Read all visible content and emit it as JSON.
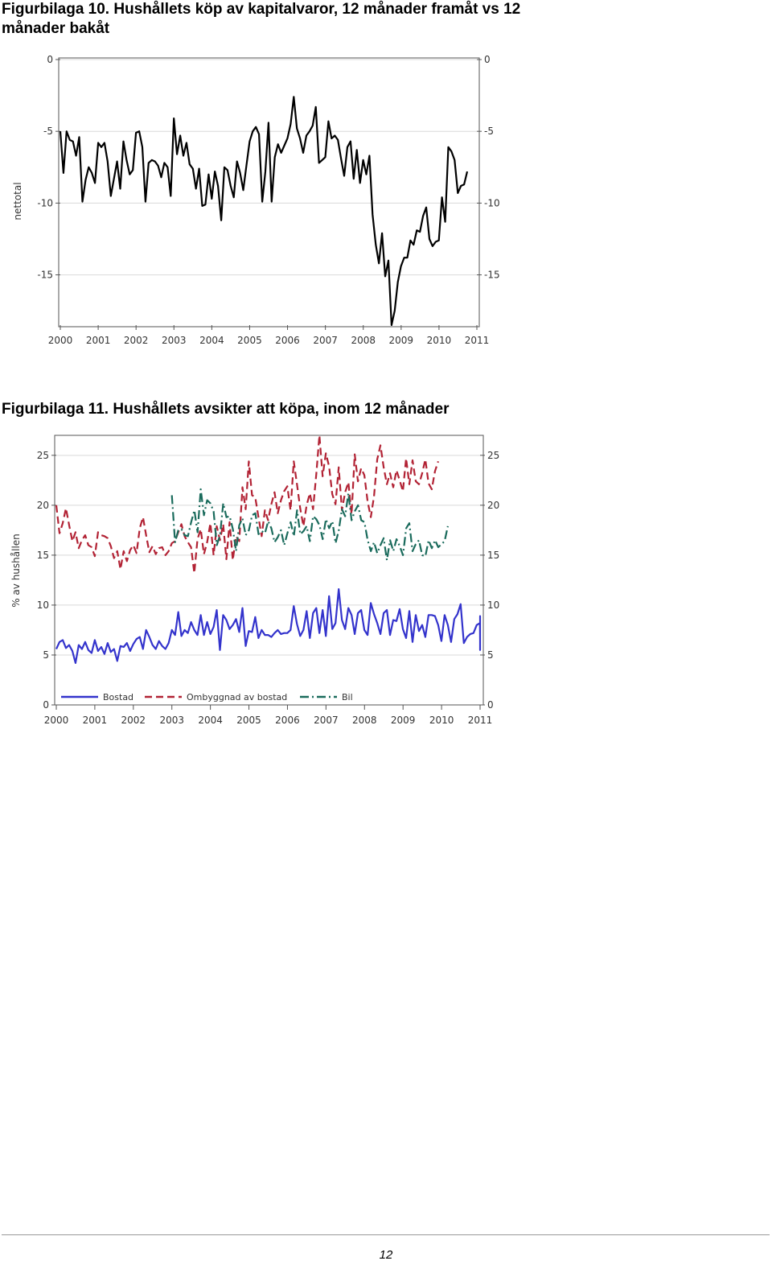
{
  "figures": [
    {
      "title": "Figurbilaga 10. Hushållets köp av kapitalvaror, 12 månader framåt vs 12 månader bakåt"
    },
    {
      "title": "Figurbilaga 11. Hushållets avsikter att köpa, inom 12 månader"
    }
  ],
  "page_number": "12",
  "chart_data": [
    {
      "type": "line",
      "title": "",
      "ylabel": "nettotal",
      "xlabel": "",
      "xlim": [
        2000,
        2011
      ],
      "ylim": [
        -18.5,
        0
      ],
      "x_ticks": [
        "2000",
        "2001",
        "2002",
        "2003",
        "2004",
        "2005",
        "2006",
        "2007",
        "2008",
        "2009",
        "2010",
        "2011"
      ],
      "y_ticks": [
        "0",
        "-5",
        "-10",
        "-15"
      ],
      "y_tick_values": [
        0,
        -5,
        -10,
        -15
      ],
      "grid": true,
      "legend": "none",
      "series": [
        {
          "color": "#000000",
          "x_start": 2000.0,
          "x_step": 0.0833,
          "values": [
            -5.0,
            -7.9,
            -5.0,
            -5.6,
            -5.7,
            -6.7,
            -5.4,
            -9.9,
            -8.4,
            -7.5,
            -7.9,
            -8.6,
            -5.8,
            -6.1,
            -5.8,
            -7.1,
            -9.5,
            -8.3,
            -7.1,
            -9.0,
            -5.7,
            -7.0,
            -8.0,
            -7.7,
            -5.1,
            -5.0,
            -6.1,
            -9.9,
            -7.2,
            -7.0,
            -7.1,
            -7.4,
            -8.2,
            -7.2,
            -7.5,
            -9.5,
            -4.1,
            -6.6,
            -5.3,
            -6.7,
            -5.8,
            -7.3,
            -7.6,
            -9.0,
            -7.6,
            -10.2,
            -10.1,
            -8.0,
            -9.7,
            -7.8,
            -8.8,
            -11.2,
            -7.5,
            -7.7,
            -8.8,
            -9.6,
            -7.1,
            -7.9,
            -9.1,
            -7.4,
            -5.7,
            -5.0,
            -4.7,
            -5.2,
            -9.9,
            -7.8,
            -4.4,
            -9.9,
            -6.8,
            -5.9,
            -6.5,
            -6.0,
            -5.5,
            -4.5,
            -2.6,
            -4.8,
            -5.5,
            -6.5,
            -5.3,
            -5.0,
            -4.6,
            -3.3,
            -7.2,
            -7.0,
            -6.8,
            -4.3,
            -5.5,
            -5.3,
            -5.6,
            -6.9,
            -8.1,
            -6.1,
            -5.7,
            -8.3,
            -6.3,
            -8.6,
            -7.0,
            -8.0,
            -6.7,
            -10.8,
            -12.9,
            -14.2,
            -12.1,
            -15.1,
            -14.0,
            -18.5,
            -17.5,
            -15.5,
            -14.4,
            -13.8,
            -13.8,
            -12.6,
            -12.9,
            -11.9,
            -12.0,
            -10.9,
            -10.3,
            -12.5,
            -13.0,
            -12.7,
            -12.6,
            -9.6,
            -11.3,
            -6.1,
            -6.4,
            -7.0,
            -9.3,
            -8.8,
            -8.7,
            -7.8
          ]
        }
      ]
    },
    {
      "type": "line",
      "title": "",
      "ylabel": "% av hushållen",
      "xlabel": "",
      "xlim": [
        2000,
        2011
      ],
      "ylim": [
        0,
        27
      ],
      "x_ticks": [
        "2000",
        "2001",
        "2002",
        "2003",
        "2004",
        "2005",
        "2006",
        "2007",
        "2008",
        "2009",
        "2010",
        "2011"
      ],
      "y_ticks": [
        "25",
        "20",
        "15",
        "10",
        "5",
        "0"
      ],
      "y_tick_values": [
        25,
        20,
        15,
        10,
        5,
        0
      ],
      "grid": true,
      "legend": "bottom-left inside",
      "series": [
        {
          "name": "Bostad",
          "color": "#3333cc",
          "dash": "solid",
          "x_start": 2000.0,
          "x_step": 0.0833,
          "values": [
            5.6,
            6.3,
            6.5,
            5.7,
            6.0,
            5.4,
            4.2,
            6.0,
            5.6,
            6.3,
            5.5,
            5.2,
            6.5,
            5.4,
            5.8,
            5.1,
            6.2,
            5.3,
            5.6,
            4.4,
            5.9,
            5.8,
            6.2,
            5.4,
            6.1,
            6.6,
            6.8,
            5.6,
            7.5,
            6.8,
            6.0,
            5.6,
            6.4,
            5.9,
            5.6,
            6.2,
            7.5,
            7.0,
            9.3,
            6.9,
            7.5,
            7.2,
            8.3,
            7.5,
            7.0,
            9.0,
            7.0,
            8.3,
            7.1,
            7.8,
            9.5,
            5.5,
            9.0,
            8.5,
            7.6,
            8.0,
            8.6,
            7.3,
            9.7,
            5.9,
            7.4,
            7.3,
            8.8,
            6.7,
            7.5,
            7.0,
            7.0,
            6.8,
            7.2,
            7.5,
            7.1,
            7.2,
            7.2,
            7.5,
            9.9,
            8.1,
            6.9,
            7.5,
            9.4,
            6.7,
            9.2,
            9.7,
            7.2,
            9.5,
            6.9,
            10.9,
            7.6,
            8.2,
            11.6,
            8.5,
            7.6,
            9.7,
            9.0,
            7.1,
            9.2,
            9.5,
            7.5,
            7.0,
            10.2,
            9.1,
            8.2,
            7.1,
            9.2,
            9.5,
            7.0,
            8.5,
            8.4,
            9.6,
            7.6,
            6.7,
            9.4,
            6.3,
            9.0,
            7.4,
            8.0,
            6.8,
            9.0,
            9.0,
            8.9,
            8.0,
            6.4,
            9.0,
            8.0,
            6.3,
            8.6,
            9.1,
            10.1,
            6.2,
            6.8,
            7.1,
            7.2,
            8.0,
            8.2,
            6.4,
            8.8,
            7.3,
            8.4,
            8.0,
            6.6,
            8.9,
            7.1,
            8.5,
            8.2,
            6.8,
            8.1,
            8.5,
            5.5,
            8.0
          ]
        },
        {
          "name": "Ombyggnad av bostad",
          "color": "#b22234",
          "dash": "dashed",
          "x_start": 2000.0,
          "x_step": 0.0833,
          "values": [
            20.0,
            17.2,
            18.2,
            19.7,
            18.0,
            16.4,
            17.3,
            15.7,
            16.5,
            17.0,
            16.0,
            15.8,
            14.9,
            17.3,
            17.0,
            16.9,
            16.7,
            15.9,
            14.7,
            15.4,
            13.6,
            15.4,
            14.4,
            15.5,
            16.0,
            15.2,
            17.7,
            18.8,
            17.0,
            15.3,
            15.9,
            15.1,
            15.7,
            15.8,
            15.0,
            15.4,
            16.2,
            16.4,
            17.3,
            18.1,
            16.9,
            16.3,
            15.8,
            13.2,
            16.6,
            17.6,
            15.1,
            16.3,
            18.2,
            15.0,
            17.9,
            16.5,
            18.1,
            14.6,
            18.3,
            14.5,
            16.9,
            16.4,
            21.8,
            19.6,
            24.4,
            21.0,
            20.8,
            18.8,
            16.9,
            19.5,
            18.5,
            20.1,
            21.3,
            19.2,
            20.5,
            21.4,
            21.9,
            19.5,
            24.4,
            22.1,
            19.7,
            17.9,
            20.0,
            21.2,
            19.6,
            23.1,
            27.0,
            22.9,
            25.2,
            23.9,
            21.1,
            20.1,
            23.8,
            19.5,
            21.3,
            22.3,
            19.1,
            25.1,
            22.4,
            23.7,
            23.0,
            20.4,
            18.8,
            20.9,
            24.6,
            26.0,
            23.8,
            22.1,
            23.2,
            21.8,
            23.5,
            22.5,
            21.4,
            24.7,
            22.1,
            24.5,
            22.4,
            22.1,
            23.2,
            24.6,
            22.2,
            21.6,
            23.4,
            24.4
          ]
        },
        {
          "name": "Bil",
          "color": "#1a6b5c",
          "dash": "dashdot",
          "x_start": 2003.0,
          "x_step": 0.0833,
          "values": [
            21.0,
            16.3,
            17.5,
            17.6,
            17.0,
            16.9,
            18.3,
            19.5,
            17.3,
            21.6,
            19.0,
            20.5,
            20.2,
            19.4,
            16.0,
            17.0,
            20.2,
            18.8,
            18.9,
            17.6,
            15.4,
            18.0,
            18.7,
            17.0,
            17.5,
            19.0,
            19.2,
            17.1,
            17.4,
            17.2,
            18.4,
            17.7,
            16.3,
            16.8,
            17.5,
            16.0,
            17.2,
            18.3,
            16.9,
            19.5,
            17.1,
            17.4,
            17.9,
            16.4,
            18.9,
            18.6,
            18.0,
            16.6,
            18.6,
            17.7,
            18.4,
            16.2,
            17.5,
            19.6,
            18.9,
            21.2,
            18.5,
            19.4,
            20.0,
            18.5,
            18.3,
            16.5,
            15.4,
            16.3,
            15.2,
            16.0,
            16.7,
            14.5,
            16.5,
            15.4,
            16.6,
            15.9,
            15.0,
            17.7,
            18.2,
            15.4,
            16.1,
            16.5,
            15.0,
            14.9,
            16.5,
            15.7,
            16.5,
            15.8,
            16.1,
            16.4,
            17.9
          ]
        }
      ]
    }
  ]
}
